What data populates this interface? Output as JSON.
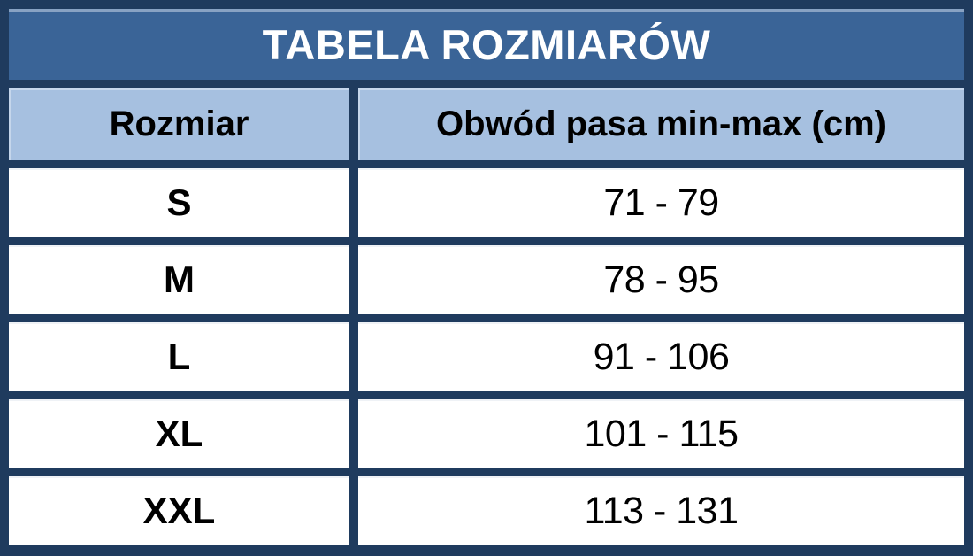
{
  "page": {
    "background": "#FFFFFF"
  },
  "chart_data": {
    "type": "table",
    "title": "TABELA ROZMIARÓW",
    "columns": [
      "Rozmiar",
      "Obwód pasa min-max (cm)"
    ],
    "rows": [
      {
        "size": "S",
        "range": "71 - 79"
      },
      {
        "size": "M",
        "range": "78 - 95"
      },
      {
        "size": "L",
        "range": "91 - 106"
      },
      {
        "size": "XL",
        "range": "101 - 115"
      },
      {
        "size": "XXL",
        "range": "113 - 131"
      }
    ],
    "layout": {
      "legend": "none",
      "grid": "thick-borders",
      "title_row_spans_columns": true
    },
    "colors": {
      "frame_border": "#1F3B5E",
      "title_background": "#3A6497",
      "title_text": "#FFFFFF",
      "header_background": "#A6C0E0",
      "header_text": "#000000",
      "cell_background": "#FFFFFF",
      "cell_text": "#000000"
    }
  }
}
